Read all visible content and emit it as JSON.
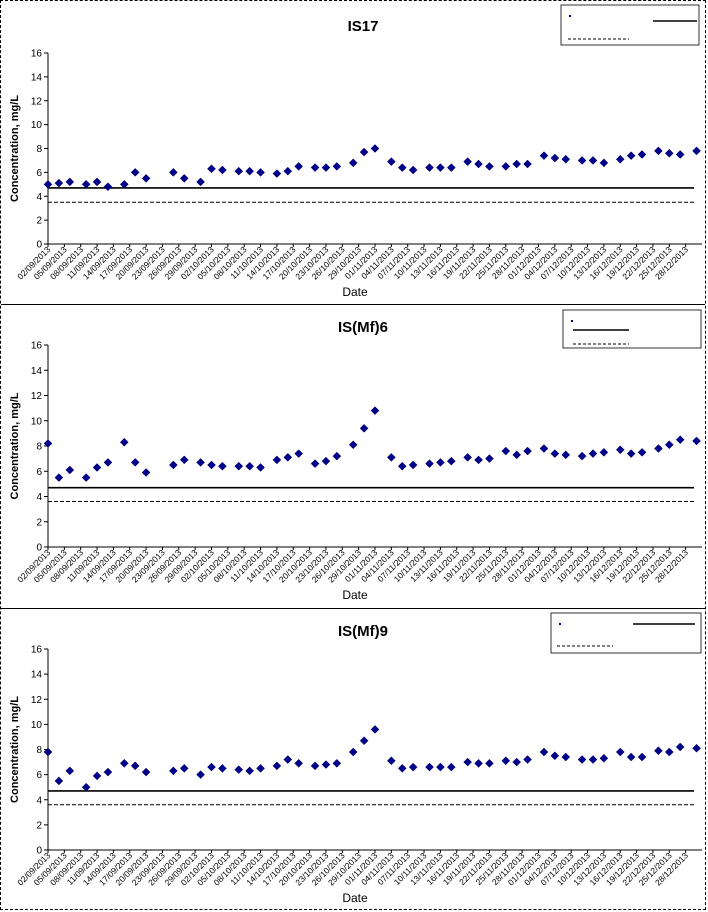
{
  "chart_data": [
    {
      "type": "scatter",
      "title": "IS17",
      "xlabel": "Date",
      "ylabel": "Concentration, mg/L",
      "ylim": [
        0,
        16
      ],
      "yticks": [
        0,
        2,
        4,
        6,
        8,
        10,
        12,
        14,
        16
      ],
      "xlim": [
        "02/09/2013",
        "31/12/2013"
      ],
      "xticks": [
        "02/09/2013",
        "05/09/2013",
        "08/09/2013",
        "11/09/2013",
        "14/09/2013",
        "17/09/2013",
        "20/09/2013",
        "23/09/2013",
        "26/09/2013",
        "29/09/2013",
        "02/10/2013",
        "05/10/2013",
        "08/10/2013",
        "11/10/2013",
        "14/10/2013",
        "17/10/2013",
        "20/10/2013",
        "23/10/2013",
        "26/10/2013",
        "29/10/2013",
        "01/11/2013",
        "04/11/2013",
        "07/11/2013",
        "10/11/2013",
        "13/11/2013",
        "16/11/2013",
        "19/11/2013",
        "22/11/2013",
        "25/11/2013",
        "28/11/2013",
        "01/12/2013",
        "04/12/2013",
        "07/12/2013",
        "10/12/2013",
        "13/12/2013",
        "16/12/2013",
        "19/12/2013",
        "22/12/2013",
        "25/12/2013",
        "28/12/2013"
      ],
      "legend_position": "top-right",
      "grid": false,
      "reference_lines": [
        {
          "style": "solid",
          "value": 4.7
        },
        {
          "style": "dashed",
          "value": 3.5
        }
      ],
      "series": [
        {
          "color": "#00008b",
          "marker": "diamond",
          "points": [
            [
              "02/09/2013",
              5.0
            ],
            [
              "04/09/2013",
              5.1
            ],
            [
              "06/09/2013",
              5.2
            ],
            [
              "09/09/2013",
              5.0
            ],
            [
              "11/09/2013",
              5.2
            ],
            [
              "13/09/2013",
              4.8
            ],
            [
              "16/09/2013",
              5.0
            ],
            [
              "18/09/2013",
              6.0
            ],
            [
              "20/09/2013",
              5.5
            ],
            [
              "25/09/2013",
              6.0
            ],
            [
              "27/09/2013",
              5.5
            ],
            [
              "30/09/2013",
              5.2
            ],
            [
              "02/10/2013",
              6.3
            ],
            [
              "04/10/2013",
              6.2
            ],
            [
              "07/10/2013",
              6.1
            ],
            [
              "09/10/2013",
              6.1
            ],
            [
              "11/10/2013",
              6.0
            ],
            [
              "14/10/2013",
              5.9
            ],
            [
              "16/10/2013",
              6.1
            ],
            [
              "18/10/2013",
              6.5
            ],
            [
              "21/10/2013",
              6.4
            ],
            [
              "23/10/2013",
              6.4
            ],
            [
              "25/10/2013",
              6.5
            ],
            [
              "28/10/2013",
              6.8
            ],
            [
              "30/10/2013",
              7.7
            ],
            [
              "01/11/2013",
              8.0
            ],
            [
              "04/11/2013",
              6.9
            ],
            [
              "06/11/2013",
              6.4
            ],
            [
              "08/11/2013",
              6.2
            ],
            [
              "11/11/2013",
              6.4
            ],
            [
              "13/11/2013",
              6.4
            ],
            [
              "15/11/2013",
              6.4
            ],
            [
              "18/11/2013",
              6.9
            ],
            [
              "20/11/2013",
              6.7
            ],
            [
              "22/11/2013",
              6.5
            ],
            [
              "25/11/2013",
              6.5
            ],
            [
              "27/11/2013",
              6.7
            ],
            [
              "29/11/2013",
              6.7
            ],
            [
              "02/12/2013",
              7.4
            ],
            [
              "04/12/2013",
              7.2
            ],
            [
              "06/12/2013",
              7.1
            ],
            [
              "09/12/2013",
              7.0
            ],
            [
              "11/12/2013",
              7.0
            ],
            [
              "13/12/2013",
              6.8
            ],
            [
              "16/12/2013",
              7.1
            ],
            [
              "18/12/2013",
              7.4
            ],
            [
              "20/12/2013",
              7.5
            ],
            [
              "23/12/2013",
              7.8
            ],
            [
              "25/12/2013",
              7.6
            ],
            [
              "27/12/2013",
              7.5
            ],
            [
              "30/12/2013",
              7.8
            ]
          ]
        }
      ]
    },
    {
      "type": "scatter",
      "title": "IS(Mf)6",
      "xlabel": "Date",
      "ylabel": "Concentration, mg/L",
      "ylim": [
        0,
        16
      ],
      "yticks": [
        0,
        2,
        4,
        6,
        8,
        10,
        12,
        14,
        16
      ],
      "xlim": [
        "02/09/2013",
        "31/12/2013"
      ],
      "xticks": [
        "02/09/2013",
        "05/09/2013",
        "08/09/2013",
        "11/09/2013",
        "14/09/2013",
        "17/09/2013",
        "20/09/2013",
        "23/09/2013",
        "26/09/2013",
        "29/09/2013",
        "02/10/2013",
        "05/10/2013",
        "08/10/2013",
        "11/10/2013",
        "14/10/2013",
        "17/10/2013",
        "20/10/2013",
        "23/10/2013",
        "26/10/2013",
        "29/10/2013",
        "01/11/2013",
        "04/11/2013",
        "07/11/2013",
        "10/11/2013",
        "13/11/2013",
        "16/11/2013",
        "19/11/2013",
        "22/11/2013",
        "25/11/2013",
        "28/11/2013",
        "01/12/2013",
        "04/12/2013",
        "07/12/2013",
        "10/12/2013",
        "13/12/2013",
        "16/12/2013",
        "19/12/2013",
        "22/12/2013",
        "25/12/2013",
        "28/12/2013"
      ],
      "legend_position": "top-right",
      "grid": false,
      "reference_lines": [
        {
          "style": "solid",
          "value": 4.7
        },
        {
          "style": "dashed",
          "value": 3.6
        }
      ],
      "series": [
        {
          "color": "#00008b",
          "marker": "diamond",
          "points": [
            [
              "02/09/2013",
              8.2
            ],
            [
              "04/09/2013",
              5.5
            ],
            [
              "06/09/2013",
              6.1
            ],
            [
              "09/09/2013",
              5.5
            ],
            [
              "11/09/2013",
              6.3
            ],
            [
              "13/09/2013",
              6.7
            ],
            [
              "16/09/2013",
              8.3
            ],
            [
              "18/09/2013",
              6.7
            ],
            [
              "20/09/2013",
              5.9
            ],
            [
              "25/09/2013",
              6.5
            ],
            [
              "27/09/2013",
              6.9
            ],
            [
              "30/09/2013",
              6.7
            ],
            [
              "02/10/2013",
              6.5
            ],
            [
              "04/10/2013",
              6.4
            ],
            [
              "07/10/2013",
              6.4
            ],
            [
              "09/10/2013",
              6.4
            ],
            [
              "11/10/2013",
              6.3
            ],
            [
              "14/10/2013",
              6.9
            ],
            [
              "16/10/2013",
              7.1
            ],
            [
              "18/10/2013",
              7.4
            ],
            [
              "21/10/2013",
              6.6
            ],
            [
              "23/10/2013",
              6.8
            ],
            [
              "25/10/2013",
              7.2
            ],
            [
              "28/10/2013",
              8.1
            ],
            [
              "30/10/2013",
              9.4
            ],
            [
              "01/11/2013",
              10.8
            ],
            [
              "04/11/2013",
              7.1
            ],
            [
              "06/11/2013",
              6.4
            ],
            [
              "08/11/2013",
              6.5
            ],
            [
              "11/11/2013",
              6.6
            ],
            [
              "13/11/2013",
              6.7
            ],
            [
              "15/11/2013",
              6.8
            ],
            [
              "18/11/2013",
              7.1
            ],
            [
              "20/11/2013",
              6.9
            ],
            [
              "22/11/2013",
              7.0
            ],
            [
              "25/11/2013",
              7.6
            ],
            [
              "27/11/2013",
              7.3
            ],
            [
              "29/11/2013",
              7.6
            ],
            [
              "02/12/2013",
              7.8
            ],
            [
              "04/12/2013",
              7.4
            ],
            [
              "06/12/2013",
              7.3
            ],
            [
              "09/12/2013",
              7.2
            ],
            [
              "11/12/2013",
              7.4
            ],
            [
              "13/12/2013",
              7.5
            ],
            [
              "16/12/2013",
              7.7
            ],
            [
              "18/12/2013",
              7.4
            ],
            [
              "20/12/2013",
              7.5
            ],
            [
              "23/12/2013",
              7.8
            ],
            [
              "25/12/2013",
              8.1
            ],
            [
              "27/12/2013",
              8.5
            ],
            [
              "30/12/2013",
              8.4
            ]
          ]
        }
      ]
    },
    {
      "type": "scatter",
      "title": "IS(Mf)9",
      "xlabel": "Date",
      "ylabel": "Concentration, mg/L",
      "ylim": [
        0,
        16
      ],
      "yticks": [
        0,
        2,
        4,
        6,
        8,
        10,
        12,
        14,
        16
      ],
      "xlim": [
        "02/09/2013",
        "31/12/2013"
      ],
      "xticks": [
        "02/09/2013",
        "05/09/2013",
        "08/09/2013",
        "11/09/2013",
        "14/09/2013",
        "17/09/2013",
        "20/09/2013",
        "23/09/2013",
        "26/09/2013",
        "29/09/2013",
        "02/10/2013",
        "05/10/2013",
        "08/10/2013",
        "11/10/2013",
        "14/10/2013",
        "17/10/2013",
        "20/10/2013",
        "23/10/2013",
        "26/10/2013",
        "29/10/2013",
        "01/11/2013",
        "04/11/2013",
        "07/11/2013",
        "10/11/2013",
        "13/11/2013",
        "16/11/2013",
        "19/11/2013",
        "22/11/2013",
        "25/11/2013",
        "28/11/2013",
        "01/12/2013",
        "04/12/2013",
        "07/12/2013",
        "10/12/2013",
        "13/12/2013",
        "16/12/2013",
        "19/12/2013",
        "22/12/2013",
        "25/12/2013",
        "28/12/2013"
      ],
      "legend_position": "top-right",
      "grid": false,
      "reference_lines": [
        {
          "style": "solid",
          "value": 4.7
        },
        {
          "style": "dashed",
          "value": 3.6
        }
      ],
      "series": [
        {
          "color": "#00008b",
          "marker": "diamond",
          "points": [
            [
              "02/09/2013",
              7.8
            ],
            [
              "04/09/2013",
              5.5
            ],
            [
              "06/09/2013",
              6.3
            ],
            [
              "09/09/2013",
              5.0
            ],
            [
              "11/09/2013",
              5.9
            ],
            [
              "13/09/2013",
              6.2
            ],
            [
              "16/09/2013",
              6.9
            ],
            [
              "18/09/2013",
              6.7
            ],
            [
              "20/09/2013",
              6.2
            ],
            [
              "25/09/2013",
              6.3
            ],
            [
              "27/09/2013",
              6.5
            ],
            [
              "30/09/2013",
              6.0
            ],
            [
              "02/10/2013",
              6.6
            ],
            [
              "04/10/2013",
              6.5
            ],
            [
              "07/10/2013",
              6.4
            ],
            [
              "09/10/2013",
              6.3
            ],
            [
              "11/10/2013",
              6.5
            ],
            [
              "14/10/2013",
              6.7
            ],
            [
              "16/10/2013",
              7.2
            ],
            [
              "18/10/2013",
              6.9
            ],
            [
              "21/10/2013",
              6.7
            ],
            [
              "23/10/2013",
              6.8
            ],
            [
              "25/10/2013",
              6.9
            ],
            [
              "28/10/2013",
              7.8
            ],
            [
              "30/10/2013",
              8.7
            ],
            [
              "01/11/2013",
              9.6
            ],
            [
              "04/11/2013",
              7.1
            ],
            [
              "06/11/2013",
              6.5
            ],
            [
              "08/11/2013",
              6.6
            ],
            [
              "11/11/2013",
              6.6
            ],
            [
              "13/11/2013",
              6.6
            ],
            [
              "15/11/2013",
              6.6
            ],
            [
              "18/11/2013",
              7.0
            ],
            [
              "20/11/2013",
              6.9
            ],
            [
              "22/11/2013",
              6.9
            ],
            [
              "25/11/2013",
              7.1
            ],
            [
              "27/11/2013",
              7.0
            ],
            [
              "29/11/2013",
              7.2
            ],
            [
              "02/12/2013",
              7.8
            ],
            [
              "04/12/2013",
              7.5
            ],
            [
              "06/12/2013",
              7.4
            ],
            [
              "09/12/2013",
              7.2
            ],
            [
              "11/12/2013",
              7.2
            ],
            [
              "13/12/2013",
              7.3
            ],
            [
              "16/12/2013",
              7.8
            ],
            [
              "18/12/2013",
              7.4
            ],
            [
              "20/12/2013",
              7.4
            ],
            [
              "23/12/2013",
              7.9
            ],
            [
              "25/12/2013",
              7.8
            ],
            [
              "27/12/2013",
              8.2
            ],
            [
              "30/12/2013",
              8.1
            ]
          ]
        }
      ]
    }
  ]
}
